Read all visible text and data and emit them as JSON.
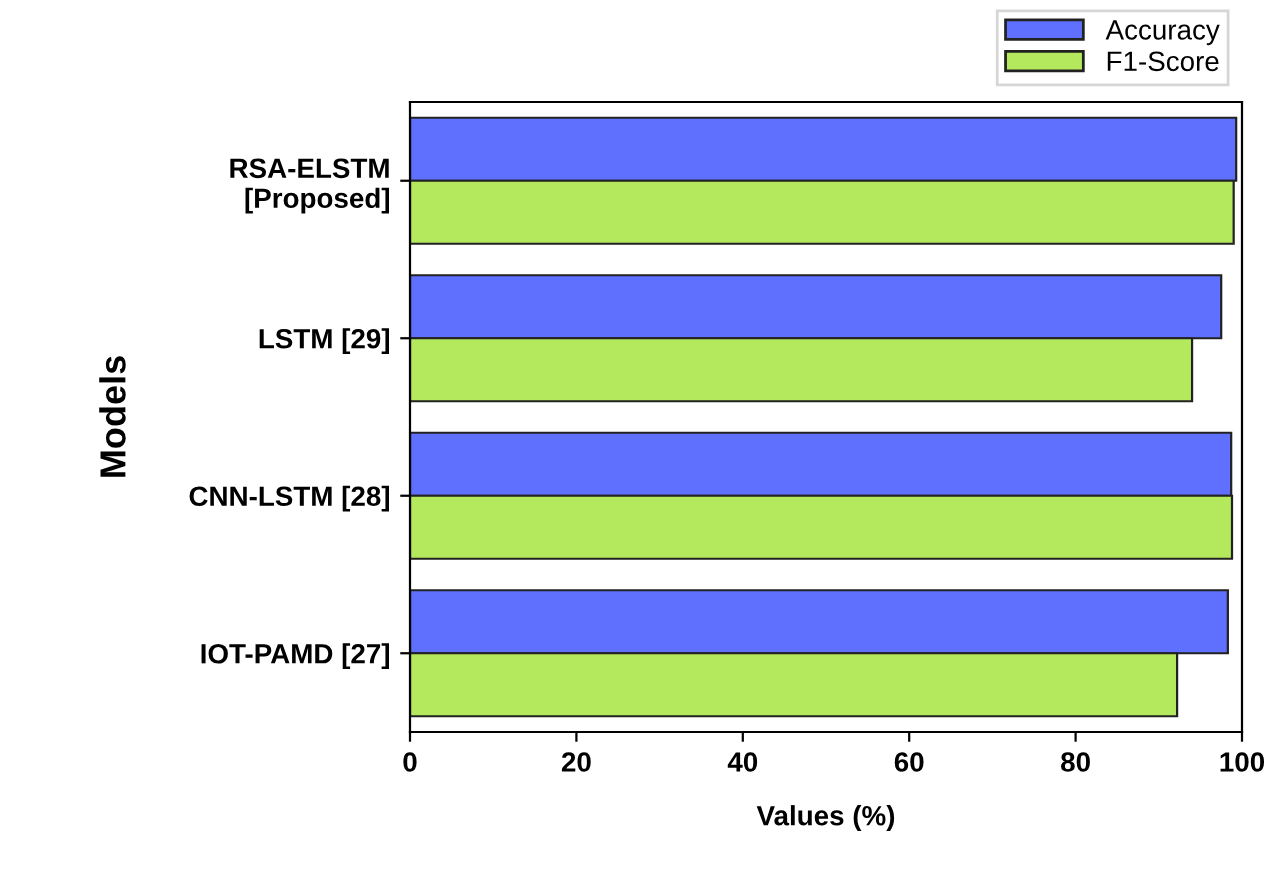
{
  "chart_data": {
    "type": "bar",
    "orientation": "horizontal",
    "xlabel": "Values (%)",
    "ylabel": "Models",
    "categories": [
      "RSA-ELSTM\n[Proposed]",
      "LSTM [29]",
      "CNN-LSTM [28]",
      "IOT-PAMD [27]"
    ],
    "series": [
      {
        "name": "Accuracy",
        "color": "#5f70fe",
        "values": [
          99.3,
          97.5,
          98.7,
          98.3
        ]
      },
      {
        "name": "F1-Score",
        "color": "#b4e95e",
        "values": [
          99.0,
          94.0,
          98.8,
          92.2
        ]
      }
    ],
    "xlim": [
      0,
      100
    ],
    "xticks": [
      0,
      20,
      40,
      60,
      80,
      100
    ],
    "grid": false,
    "legend": "top right"
  }
}
